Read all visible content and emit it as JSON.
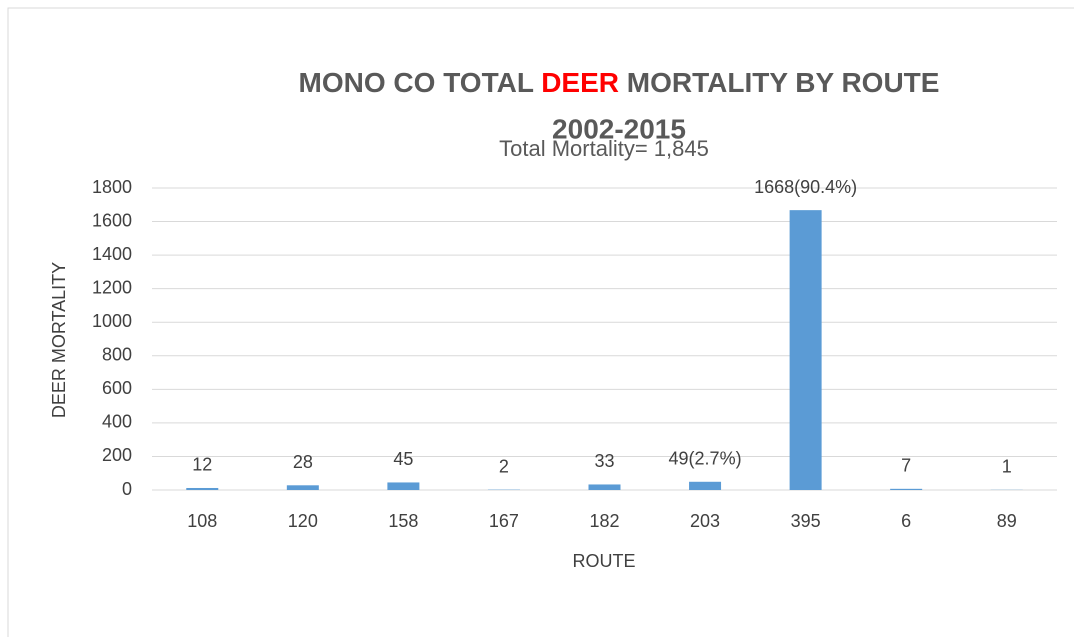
{
  "chart_data": {
    "type": "bar",
    "title": [
      "MONO CO TOTAL ",
      "DEER",
      " MORTALITY BY ROUTE"
    ],
    "title_line2": "2002-2015",
    "subtitle": "Total Mortality= 1,845",
    "x_label": "ROUTE",
    "y_label": "DEER MORTALITY",
    "categories": [
      "108",
      "120",
      "158",
      "167",
      "182",
      "203",
      "395",
      "6",
      "89"
    ],
    "values": [
      12,
      28,
      45,
      2,
      33,
      49,
      1668,
      7,
      1
    ],
    "value_labels": [
      "12",
      "28",
      "45",
      "2",
      "33",
      "49(2.7%)",
      "1668(90.4%)",
      "7",
      "1"
    ],
    "color": "#5b9bd5",
    "title_highlight_color": "#ff0000",
    "ylim": [
      0,
      1800
    ],
    "yticks": [
      0,
      200,
      400,
      600,
      800,
      1000,
      1200,
      1400,
      1600,
      1800
    ],
    "grid": true
  }
}
